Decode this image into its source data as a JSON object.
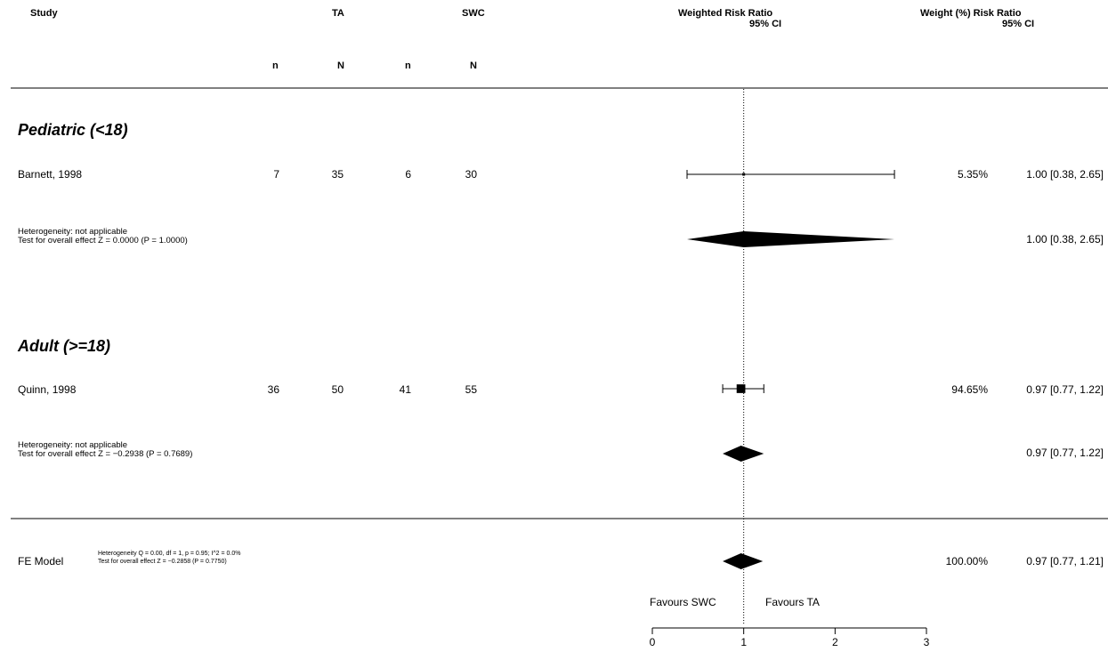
{
  "header": {
    "study": "Study",
    "ta": "TA",
    "swc": "SWC",
    "weighted_rr_line1": "Weighted Risk Ratio",
    "weighted_rr_line2": "95% CI",
    "weight_rr_line1": "Weight (%)  Risk Ratio",
    "weight_rr_line2": "95% CI",
    "n": "n",
    "N": "N"
  },
  "groups": [
    {
      "title": "Pediatric (<18)",
      "studies": [
        {
          "name": "Barnett, 1998",
          "ta_n": "7",
          "ta_N": "35",
          "swc_n": "6",
          "swc_N": "30",
          "weight": "5.35%",
          "rr_text": "1.00 [0.38, 2.65]"
        }
      ],
      "heterogeneity": "Heterogeneity: not applicable",
      "overall_test": "Test for overall effect Z = 0.0000 (P = 1.0000)",
      "summary_text": "1.00 [0.38, 2.65]"
    },
    {
      "title": "Adult (>=18)",
      "studies": [
        {
          "name": "Quinn, 1998",
          "ta_n": "36",
          "ta_N": "50",
          "swc_n": "41",
          "swc_N": "55",
          "weight": "94.65%",
          "rr_text": "0.97 [0.77, 1.22]"
        }
      ],
      "heterogeneity": "Heterogeneity: not applicable",
      "overall_test": "Test for overall effect Z = −0.2938 (P = 0.7689)",
      "summary_text": "0.97 [0.77, 1.22]"
    }
  ],
  "overall": {
    "label": "FE Model",
    "heterogeneity": "Heterogeneity Q = 0.00, df = 1, p = 0.95; I^2 = 0.0%",
    "overall_test": "Test for overall effect Z = −0.2858 (P = 0.7750)",
    "weight": "100.00%",
    "rr_text": "0.97 [0.77, 1.21]"
  },
  "axis": {
    "favours_left": "Favours SWC",
    "favours_right": "Favours TA",
    "ticks": [
      "0",
      "1",
      "2",
      "3"
    ]
  },
  "chart_data": {
    "type": "forest",
    "xlim": [
      0,
      3
    ],
    "reference_line": 1,
    "xticks": [
      0,
      1,
      2,
      3
    ],
    "studies": [
      {
        "name": "Barnett, 1998",
        "group": "Pediatric (<18)",
        "estimate": 1.0,
        "lower": 0.38,
        "upper": 2.65,
        "weight": 5.35
      },
      {
        "name": "Quinn, 1998",
        "group": "Adult (>=18)",
        "estimate": 0.97,
        "lower": 0.77,
        "upper": 1.22,
        "weight": 94.65
      }
    ],
    "subgroup_summaries": [
      {
        "group": "Pediatric (<18)",
        "estimate": 1.0,
        "lower": 0.38,
        "upper": 2.65
      },
      {
        "group": "Adult (>=18)",
        "estimate": 0.97,
        "lower": 0.77,
        "upper": 1.22
      }
    ],
    "overall_summary": {
      "estimate": 0.97,
      "lower": 0.77,
      "upper": 1.21,
      "weight": 100.0
    }
  }
}
